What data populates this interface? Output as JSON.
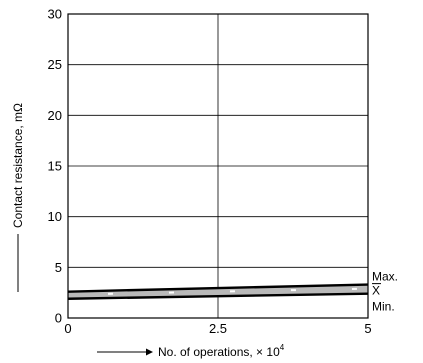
{
  "chart_data": {
    "type": "line",
    "title": "",
    "xlabel": "No. of operations, × 10",
    "xlabel_exponent": "4",
    "ylabel": "Contact resistance, mΩ",
    "xlim": [
      0,
      5
    ],
    "ylim": [
      0,
      30
    ],
    "x_ticks": [
      0,
      2.5,
      5
    ],
    "x_tick_labels": [
      "0",
      "2.5",
      "5"
    ],
    "y_ticks": [
      0,
      5,
      10,
      15,
      20,
      25,
      30
    ],
    "y_tick_labels": [
      "0",
      "5",
      "10",
      "15",
      "20",
      "25",
      "30"
    ],
    "grid": "major",
    "series": [
      {
        "name": "Max.",
        "x": [
          0,
          5
        ],
        "y": [
          2.6,
          3.3
        ]
      },
      {
        "name": "X",
        "x": [
          0,
          5
        ],
        "y": [
          2.3,
          2.9
        ]
      },
      {
        "name": "Min.",
        "x": [
          0,
          5
        ],
        "y": [
          1.9,
          2.4
        ]
      }
    ]
  }
}
